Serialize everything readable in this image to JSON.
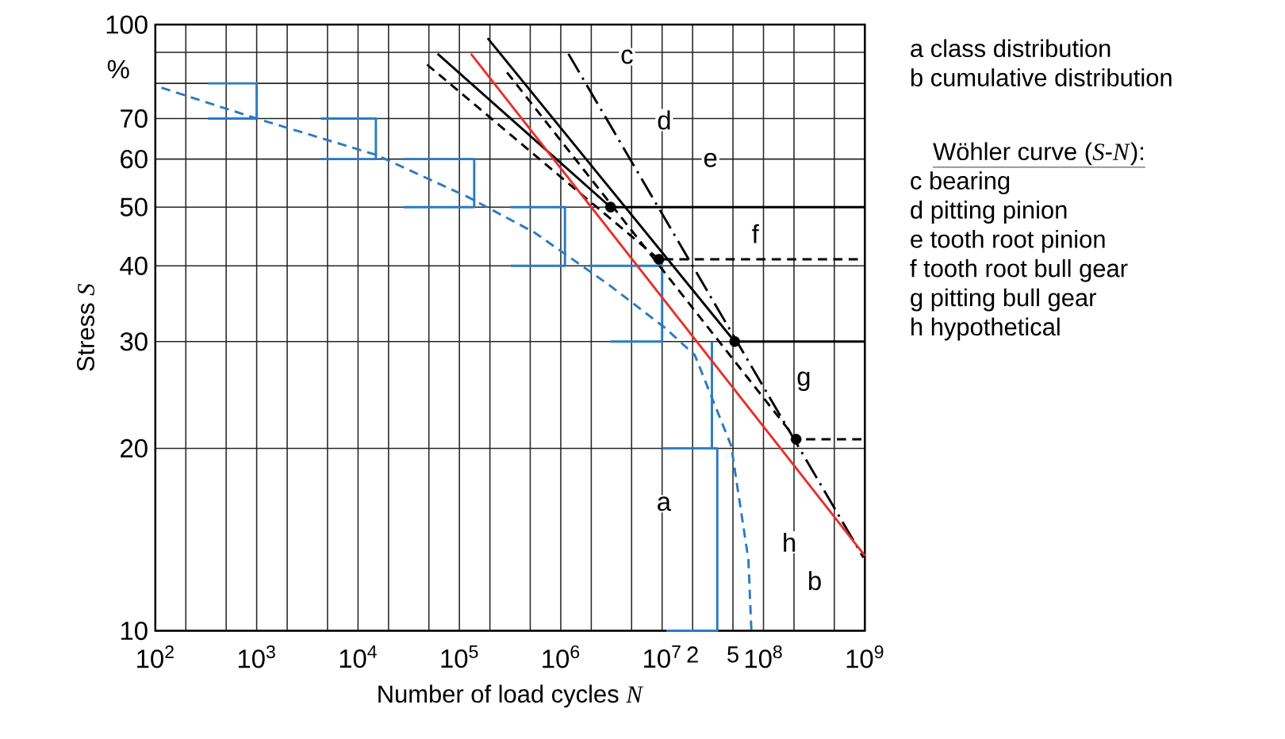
{
  "chart_data": {
    "type": "line",
    "xlabel": "Number of load cycles *N*",
    "ylabel": "Stress *S*",
    "log": "xy",
    "grid": true,
    "xlim": [
      100,
      1000000000
    ],
    "ylim": [
      10,
      100
    ],
    "xticks": [
      {
        "value": 100,
        "label": "10$^{2}$"
      },
      {
        "value": 200,
        "label": null
      },
      {
        "value": 500,
        "label": null
      },
      {
        "value": 1000,
        "label": "10$^{3}$"
      },
      {
        "value": 2000,
        "label": null
      },
      {
        "value": 5000,
        "label": null
      },
      {
        "value": 10000,
        "label": "10$^{4}$"
      },
      {
        "value": 20000,
        "label": null
      },
      {
        "value": 50000,
        "label": null
      },
      {
        "value": 100000,
        "label": "10$^{5}$"
      },
      {
        "value": 200000,
        "label": null
      },
      {
        "value": 500000,
        "label": null
      },
      {
        "value": 1000000,
        "label": "10$^{6}$"
      },
      {
        "value": 2000000,
        "label": null
      },
      {
        "value": 5000000,
        "label": null
      },
      {
        "value": 10000000,
        "label": "10$^{7}$"
      },
      {
        "value": 20000000,
        "label": null
      },
      {
        "value": 50000000,
        "label": null
      },
      {
        "value": 100000000,
        "label": "10$^{8}$"
      },
      {
        "value": 200000000,
        "label": null
      },
      {
        "value": 500000000,
        "label": null
      },
      {
        "value": 1000000000,
        "label": "10$^{9}$"
      }
    ],
    "yticks": [
      10,
      20,
      30,
      40,
      50,
      60,
      70,
      {
        "value": 80,
        "label": null
      },
      {
        "value": 90,
        "label": null
      },
      100
    ],
    "series": [
      {
        "color": "#2a7bc4",
        "line_style": "solid",
        "x": [
          330,
          1000,
          1000,
          330,
          null,
          4300,
          15000,
          15000,
          4300,
          null,
          28000,
          140000,
          140000,
          28000,
          null,
          320000,
          1100000,
          1100000,
          320000,
          null,
          1900000,
          10000000,
          10000000,
          3100000,
          null,
          31000000,
          31000000,
          null,
          10000000,
          35000000,
          35000000,
          11000000
        ],
        "values": [
          80,
          80,
          70,
          70,
          null,
          70,
          70,
          60,
          60,
          null,
          60,
          60,
          50,
          50,
          null,
          50,
          50,
          40,
          40,
          null,
          40,
          40,
          30,
          30,
          null,
          30,
          20,
          null,
          20,
          20,
          10,
          10
        ]
      },
      {
        "color": "#2a7bc4",
        "line_style": "dashed",
        "x": [
          115,
          1000,
          15000,
          120000,
          550000,
          3000000,
          10700000,
          21000000,
          48000000,
          71000000,
          76000000
        ],
        "values": [
          78.7,
          70,
          61,
          52,
          45.4,
          37.2,
          31.6,
          28.5,
          20.2,
          13.1,
          10
        ]
      },
      {
        "color": "#000000",
        "line_style": "dashdot",
        "x": [
          1190000,
          970000000
        ],
        "values": [
          89.5,
          13.2
        ]
      },
      {
        "color": "#000000",
        "line_style": "solid",
        "x": [
          190000,
          52000000,
          1000000000
        ],
        "values": [
          95,
          30,
          30
        ]
      },
      {
        "color": "#000000",
        "line_style": "solid",
        "x": [
          61000,
          3100000,
          1000000000
        ],
        "values": [
          89.5,
          50,
          50
        ]
      },
      {
        "color": "#000000",
        "line_style": "dashed",
        "x": [
          48000,
          9300000,
          1000000000
        ],
        "values": [
          85.9,
          41,
          41
        ]
      },
      {
        "color": "#000000",
        "line_style": "dashed",
        "x": [
          295000,
          210000000,
          1000000000
        ],
        "values": [
          83.4,
          20.7,
          20.7
        ]
      },
      {
        "color": "#e8302a",
        "line_style": "solid",
        "x": [
          130000,
          1000000000
        ],
        "values": [
          89.5,
          13.3
        ]
      },
      {
        "type": "scatter",
        "color": "#000000",
        "marker": "circle",
        "x": [
          3100000,
          9300000,
          52000000,
          210000000
        ],
        "values": [
          50,
          41,
          30,
          20.7
        ]
      }
    ],
    "annotations": [
      "%",
      "a  class distribution",
      "b  cumulative distribution",
      "Wöhler curve (*S*-*N*):",
      "c  bearing",
      "d  pitting pinion",
      "e  tooth root pinion",
      "f  tooth root bull gear",
      "g  pitting bull gear",
      "h  hypothetical",
      {
        "text": "a",
        "x": 10400000,
        "y": 16.2
      },
      {
        "text": "b",
        "x": 320000000,
        "y": 12.1
      },
      {
        "text": "c",
        "x": 4500000,
        "y": 88.5
      },
      {
        "text": "d",
        "x": 10500000,
        "y": 69.6
      },
      {
        "text": "e",
        "x": 30000000,
        "y": 59.8
      },
      {
        "text": "f",
        "x": 83000000,
        "y": 45.2
      },
      {
        "text": "g",
        "x": 250000000,
        "y": 25.8
      },
      {
        "text": "h",
        "x": 180000000,
        "y": 14.0
      },
      {
        "text": "2",
        "x": 20000000,
        "y": 10
      },
      "5"
    ]
  }
}
